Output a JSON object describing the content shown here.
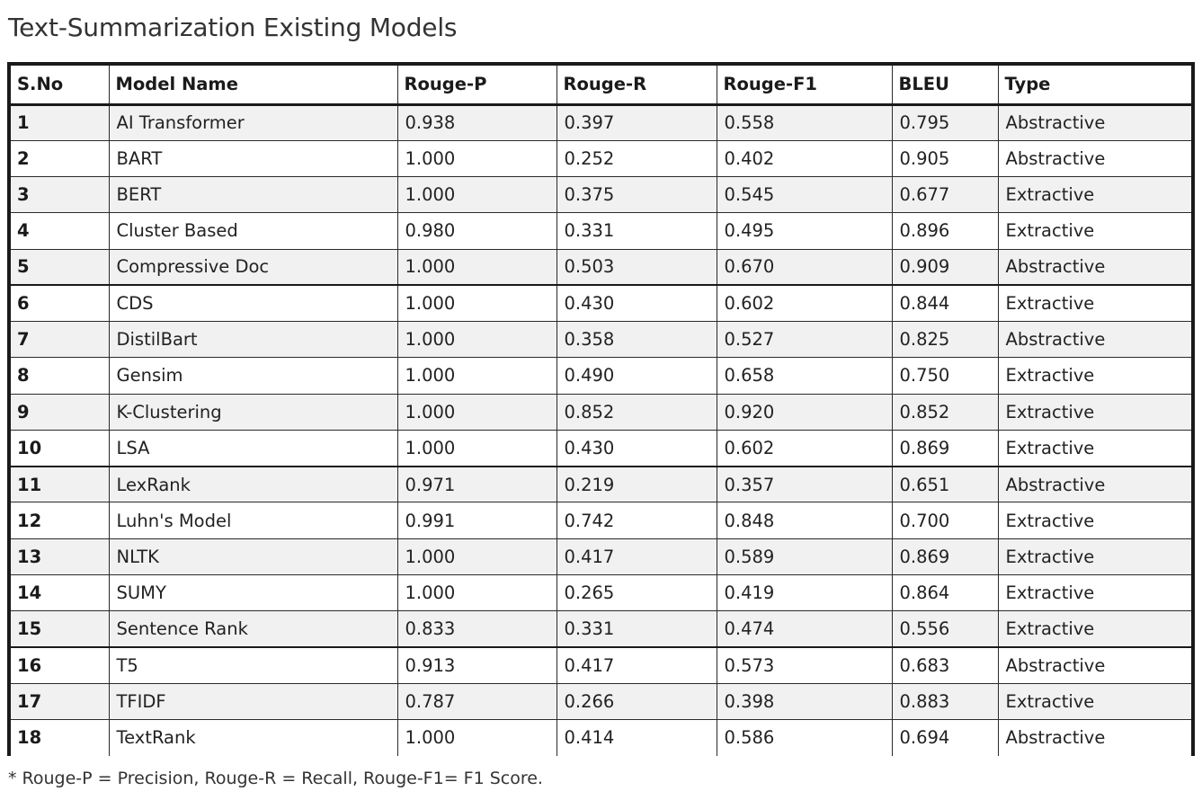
{
  "title": "Text-Summarization Existing Models",
  "table": {
    "headers": [
      "S.No",
      "Model Name",
      "Rouge-P",
      "Rouge-R",
      "Rouge-F1",
      "BLEU",
      "Type"
    ],
    "rows": [
      [
        "1",
        "AI Transformer",
        "0.938",
        "0.397",
        "0.558",
        "0.795",
        "Abstractive"
      ],
      [
        "2",
        "BART",
        "1.000",
        "0.252",
        "0.402",
        "0.905",
        "Abstractive"
      ],
      [
        "3",
        "BERT",
        "1.000",
        "0.375",
        "0.545",
        "0.677",
        "Extractive"
      ],
      [
        "4",
        "Cluster Based",
        "0.980",
        "0.331",
        "0.495",
        "0.896",
        "Extractive"
      ],
      [
        "5",
        "Compressive Doc",
        "1.000",
        "0.503",
        "0.670",
        "0.909",
        "Abstractive"
      ],
      [
        "6",
        "CDS",
        "1.000",
        "0.430",
        "0.602",
        "0.844",
        "Extractive"
      ],
      [
        "7",
        "DistilBart",
        "1.000",
        "0.358",
        "0.527",
        "0.825",
        "Abstractive"
      ],
      [
        "8",
        "Gensim",
        "1.000",
        "0.490",
        "0.658",
        "0.750",
        "Extractive"
      ],
      [
        "9",
        "K-Clustering",
        "1.000",
        "0.852",
        "0.920",
        "0.852",
        "Extractive"
      ],
      [
        "10",
        "LSA",
        "1.000",
        "0.430",
        "0.602",
        "0.869",
        "Extractive"
      ],
      [
        "11",
        "LexRank",
        "0.971",
        "0.219",
        "0.357",
        "0.651",
        "Abstractive"
      ],
      [
        "12",
        "Luhn's Model",
        "0.991",
        "0.742",
        "0.848",
        "0.700",
        "Extractive"
      ],
      [
        "13",
        "NLTK",
        "1.000",
        "0.417",
        "0.589",
        "0.869",
        "Extractive"
      ],
      [
        "14",
        "SUMY",
        "1.000",
        "0.265",
        "0.419",
        "0.864",
        "Extractive"
      ],
      [
        "15",
        "Sentence Rank",
        "0.833",
        "0.331",
        "0.474",
        "0.556",
        "Extractive"
      ],
      [
        "16",
        "T5",
        "0.913",
        "0.417",
        "0.573",
        "0.683",
        "Abstractive"
      ],
      [
        "17",
        "TFIDF",
        "0.787",
        "0.266",
        "0.398",
        "0.883",
        "Extractive"
      ],
      [
        "18",
        "TextRank",
        "1.000",
        "0.414",
        "0.586",
        "0.694",
        "Abstractive"
      ]
    ]
  },
  "footnote": "* Rouge-P = Precision, Rouge-R = Recall, Rouge-F1= F1 Score."
}
